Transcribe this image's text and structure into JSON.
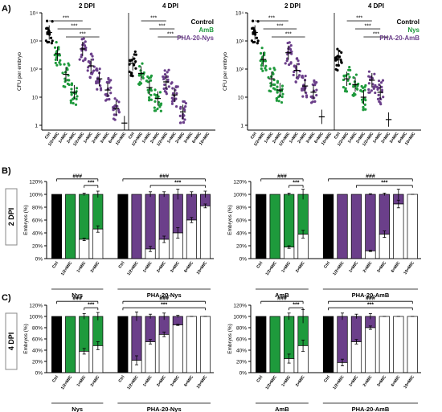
{
  "colors": {
    "black": "#000000",
    "green": "#1e9a3c",
    "purple": "#6b3f8a",
    "white": "#ffffff"
  },
  "panels": {
    "A": "A)",
    "B": "B)",
    "C": "C)"
  },
  "row_labels": {
    "B": "2 DPI",
    "C": "4 DPI"
  },
  "chart_data": [
    {
      "id": "A-left",
      "type": "scatter",
      "ylabel": "CFU per embryo",
      "yscale": "log",
      "ylim": [
        0.5,
        10000
      ],
      "yticks": [
        "1",
        "10",
        "10²",
        "10³",
        "10⁴"
      ],
      "groups": [
        {
          "title": "2 DPI",
          "categories": [
            "Ctrl",
            "1/2×MIC",
            "1×MIC",
            "2×MIC",
            "1/2×MIC",
            "1×MIC",
            "2×MIC",
            "3×MIC",
            "6×MIC",
            "10×MIC"
          ],
          "colors": [
            "black",
            "green",
            "green",
            "green",
            "purple",
            "purple",
            "purple",
            "purple",
            "purple",
            "purple"
          ],
          "medians": [
            2000,
            350,
            65,
            15,
            520,
            130,
            45,
            18,
            4,
            1.2
          ]
        },
        {
          "title": "4 DPI",
          "categories": [
            "Ctrl",
            "1/2×MIC",
            "1×MIC",
            "2×MIC",
            "1/2×MIC",
            "1×MIC",
            "2×MIC",
            "3×MIC",
            "6×MIC",
            "10×MIC"
          ],
          "colors": [
            "black",
            "green",
            "green",
            "green",
            "purple",
            "purple",
            "purple",
            "purple",
            "purple",
            "purple"
          ],
          "medians": [
            160,
            70,
            22,
            9,
            35,
            12,
            3,
            null,
            null,
            null
          ]
        }
      ],
      "sig": [
        {
          "g": 0,
          "from": 0,
          "to": 4,
          "label": "***"
        },
        {
          "g": 0,
          "from": 1,
          "to": 5,
          "label": "***"
        },
        {
          "g": 0,
          "from": 2,
          "to": 6,
          "label": "***"
        },
        {
          "g": 1,
          "from": 1,
          "to": 4,
          "label": "***"
        },
        {
          "g": 1,
          "from": 2,
          "to": 5,
          "label": "***"
        },
        {
          "g": 1,
          "from": 3,
          "to": 6,
          "label": "***"
        }
      ],
      "legend": [
        {
          "label": "Control",
          "color": "black"
        },
        {
          "label": "AmB",
          "color": "green"
        },
        {
          "label": "PHA-20-Nys",
          "color": "purple"
        }
      ]
    },
    {
      "id": "A-right",
      "type": "scatter",
      "ylabel": "CFU per embryo",
      "yscale": "log",
      "ylim": [
        0.5,
        10000
      ],
      "yticks": [
        "1",
        "10",
        "10²",
        "10³",
        "10⁴"
      ],
      "groups": [
        {
          "title": "2 DPI",
          "categories": [
            "Ctrl",
            "1/2×MIC",
            "1×MIC",
            "2×MIC",
            "1/2×MIC",
            "1×MIC",
            "2×MIC",
            "3×MIC",
            "6×MIC",
            "10×MIC"
          ],
          "colors": [
            "black",
            "green",
            "green",
            "green",
            "purple",
            "purple",
            "purple",
            "purple",
            "purple",
            "purple"
          ],
          "medians": [
            2000,
            220,
            45,
            18,
            380,
            90,
            25,
            15,
            2,
            null
          ]
        },
        {
          "title": "4 DPI",
          "categories": [
            "Ctrl",
            "1/2×MIC",
            "1×MIC",
            "2×MIC",
            "1/2×MIC",
            "1×MIC",
            "2×MIC",
            "3×MIC",
            "6×MIC",
            "10×MIC"
          ],
          "colors": [
            "black",
            "green",
            "green",
            "green",
            "purple",
            "purple",
            "purple",
            "purple",
            "purple",
            "purple"
          ],
          "medians": [
            230,
            45,
            28,
            10,
            40,
            15,
            1.6,
            null,
            null,
            null
          ]
        }
      ],
      "sig": [
        {
          "g": 0,
          "from": 0,
          "to": 4,
          "label": "***"
        },
        {
          "g": 0,
          "from": 1,
          "to": 5,
          "label": "***"
        },
        {
          "g": 0,
          "from": 2,
          "to": 6,
          "label": "***"
        },
        {
          "g": 1,
          "from": 1,
          "to": 4,
          "label": "***"
        },
        {
          "g": 1,
          "from": 2,
          "to": 5,
          "label": "***"
        },
        {
          "g": 1,
          "from": 3,
          "to": 6,
          "label": "***"
        }
      ],
      "legend": [
        {
          "label": "Control",
          "color": "black"
        },
        {
          "label": "Nys",
          "color": "green"
        },
        {
          "label": "PHA-20-AmB",
          "color": "purple"
        }
      ]
    },
    {
      "id": "B-left",
      "type": "bar",
      "row": "B",
      "ylabel": "Embryos (%)",
      "ylim": [
        0,
        120
      ],
      "yticks": [
        "0%",
        "20%",
        "40%",
        "60%",
        "80%",
        "100%",
        "120%"
      ],
      "groups": [
        {
          "label": "Nys",
          "categories": [
            "Ctrl",
            "1/2×MIC",
            "1×MIC",
            "2×MIC"
          ],
          "color": "green",
          "alive": [
            0,
            0,
            30,
            46
          ],
          "err": [
            0,
            0,
            2,
            5
          ],
          "topErr": [
            0,
            0,
            2,
            5
          ]
        },
        {
          "label": "PHA-20-Nys",
          "categories": [
            "Ctrl",
            "1/2×MIC",
            "1×MIC",
            "2×MIC",
            "3×MIC",
            "6×MIC",
            "10×MIC"
          ],
          "color": "purple",
          "alive": [
            0,
            0,
            15,
            30,
            40,
            60,
            82
          ],
          "err": [
            0,
            0,
            4,
            5,
            8,
            4,
            3
          ],
          "topErr": [
            0,
            0,
            4,
            4,
            8,
            4,
            5
          ]
        }
      ],
      "sig": [
        {
          "label": "###",
          "from": [
            0,
            0
          ],
          "to": [
            0,
            3
          ],
          "level": 2
        },
        {
          "label": "***",
          "from": [
            0,
            2
          ],
          "to": [
            0,
            3
          ],
          "level": 1
        },
        {
          "label": "###",
          "from": [
            1,
            0
          ],
          "to": [
            1,
            6
          ],
          "level": 2
        },
        {
          "label": "***",
          "from": [
            1,
            2
          ],
          "to": [
            1,
            6
          ],
          "level": 1
        }
      ]
    },
    {
      "id": "B-right",
      "type": "bar",
      "row": "B",
      "ylabel": "Embryos (%)",
      "ylim": [
        0,
        120
      ],
      "yticks": [
        "0%",
        "20%",
        "40%",
        "60%",
        "80%",
        "100%",
        "120%"
      ],
      "groups": [
        {
          "label": "AmB",
          "categories": [
            "Ctrl",
            "1/2×MIC",
            "1×MIC",
            "2×MIC"
          ],
          "color": "green",
          "alive": [
            0,
            0,
            18,
            38
          ],
          "err": [
            0,
            0,
            2,
            6
          ],
          "topErr": [
            0,
            0,
            2,
            8
          ]
        },
        {
          "label": "PHA-20-AmB",
          "categories": [
            "Ctrl",
            "1/2×MIC",
            "1×MIC",
            "2×MIC",
            "3×MIC",
            "6×MIC",
            "10×MIC"
          ],
          "color": "purple",
          "alive": [
            0,
            0,
            0,
            12,
            38,
            85,
            100
          ],
          "err": [
            0,
            0,
            0,
            1,
            5,
            6,
            0
          ],
          "topErr": [
            0,
            0,
            0,
            1,
            2,
            8,
            0
          ]
        }
      ],
      "sig": [
        {
          "label": "###",
          "from": [
            0,
            0
          ],
          "to": [
            0,
            3
          ],
          "level": 2
        },
        {
          "label": "***",
          "from": [
            0,
            2
          ],
          "to": [
            0,
            3
          ],
          "level": 1
        },
        {
          "label": "###",
          "from": [
            1,
            0
          ],
          "to": [
            1,
            6
          ],
          "level": 2
        },
        {
          "label": "***",
          "from": [
            1,
            2
          ],
          "to": [
            1,
            6
          ],
          "level": 1
        }
      ]
    },
    {
      "id": "C-left",
      "type": "bar",
      "row": "C",
      "ylabel": "Embryos (%)",
      "ylim": [
        0,
        120
      ],
      "yticks": [
        "0%",
        "20%",
        "40%",
        "60%",
        "80%",
        "100%",
        "120%"
      ],
      "groups": [
        {
          "label": "Nys",
          "categories": [
            "Ctrl",
            "1/2×MIC",
            "1×MIC",
            "2×MIC"
          ],
          "color": "green",
          "alive": [
            0,
            0,
            38,
            48
          ],
          "err": [
            0,
            0,
            5,
            7
          ],
          "topErr": [
            0,
            0,
            5,
            7
          ]
        },
        {
          "label": "PHA-20-Nys",
          "categories": [
            "Ctrl",
            "1/2×MIC",
            "1×MIC",
            "2×MIC",
            "3×MIC",
            "6×MIC",
            "10×MIC"
          ],
          "color": "purple",
          "alive": [
            0,
            22,
            55,
            68,
            85,
            100,
            100
          ],
          "err": [
            0,
            8,
            4,
            4,
            1,
            0,
            0
          ],
          "topErr": [
            0,
            8,
            4,
            6,
            2,
            0,
            0
          ]
        }
      ],
      "sig": [
        {
          "label": "###",
          "from": [
            0,
            0
          ],
          "to": [
            0,
            3
          ],
          "level": 2
        },
        {
          "label": "***",
          "from": [
            0,
            2
          ],
          "to": [
            0,
            3
          ],
          "level": 1
        },
        {
          "label": "###",
          "from": [
            1,
            0
          ],
          "to": [
            1,
            6
          ],
          "level": 2
        },
        {
          "label": "***",
          "from": [
            1,
            0
          ],
          "to": [
            1,
            6
          ],
          "level": 1
        }
      ]
    },
    {
      "id": "C-right",
      "type": "bar",
      "row": "C",
      "ylabel": "Embryos (%)",
      "ylim": [
        0,
        120
      ],
      "yticks": [
        "0%",
        "20%",
        "40%",
        "60%",
        "80%",
        "100%",
        "120%"
      ],
      "groups": [
        {
          "label": "AmB",
          "categories": [
            "Ctrl",
            "1/2×MIC",
            "1×MIC",
            "2×MIC"
          ],
          "color": "green",
          "alive": [
            0,
            0,
            25,
            48
          ],
          "err": [
            0,
            0,
            8,
            10
          ],
          "topErr": [
            0,
            0,
            6,
            12
          ]
        },
        {
          "label": "PHA-20-AmB",
          "categories": [
            "Ctrl",
            "1/2×MIC",
            "1×MIC",
            "2×MIC",
            "3×MIC",
            "6×MIC",
            "10×MIC"
          ],
          "color": "purple",
          "alive": [
            0,
            18,
            55,
            80,
            100,
            100,
            100
          ],
          "err": [
            0,
            6,
            4,
            3,
            0,
            0,
            0
          ],
          "topErr": [
            0,
            6,
            4,
            5,
            0,
            0,
            0
          ]
        }
      ],
      "sig": [
        {
          "label": "###",
          "from": [
            0,
            0
          ],
          "to": [
            0,
            3
          ],
          "level": 2
        },
        {
          "label": "***",
          "from": [
            0,
            2
          ],
          "to": [
            0,
            3
          ],
          "level": 1
        },
        {
          "label": "###",
          "from": [
            1,
            0
          ],
          "to": [
            1,
            6
          ],
          "level": 2
        },
        {
          "label": "***",
          "from": [
            1,
            0
          ],
          "to": [
            1,
            6
          ],
          "level": 1
        }
      ]
    }
  ]
}
